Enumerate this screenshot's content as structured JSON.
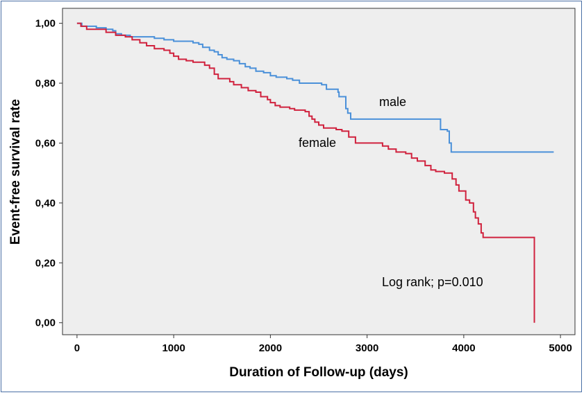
{
  "chart_data": {
    "type": "line",
    "subtype": "kaplan-meier-step",
    "xlabel": "Duration of Follow-up (days)",
    "ylabel": "Event-free survival rate",
    "xlim": [
      -150,
      5150
    ],
    "ylim": [
      -0.04,
      1.05
    ],
    "xticks": [
      0,
      1000,
      2000,
      3000,
      4000,
      5000
    ],
    "yticks": [
      0,
      0.2,
      0.4,
      0.6,
      0.8,
      1.0
    ],
    "ytick_labels": [
      "0,00",
      "0,20",
      "0,40",
      "0,60",
      "0,80",
      "1,00"
    ],
    "grid": false,
    "plot_background": "#eeeeee",
    "annotation": "Log rank; p=0.010",
    "series": [
      {
        "name": "male",
        "color": "#4a90d9",
        "points": [
          [
            0,
            1.0
          ],
          [
            50,
            0.99
          ],
          [
            100,
            0.99
          ],
          [
            200,
            0.985
          ],
          [
            300,
            0.98
          ],
          [
            370,
            0.975
          ],
          [
            400,
            0.965
          ],
          [
            460,
            0.96
          ],
          [
            550,
            0.955
          ],
          [
            700,
            0.955
          ],
          [
            800,
            0.95
          ],
          [
            900,
            0.945
          ],
          [
            1000,
            0.94
          ],
          [
            1100,
            0.94
          ],
          [
            1200,
            0.935
          ],
          [
            1260,
            0.93
          ],
          [
            1300,
            0.92
          ],
          [
            1370,
            0.91
          ],
          [
            1420,
            0.905
          ],
          [
            1460,
            0.895
          ],
          [
            1500,
            0.885
          ],
          [
            1550,
            0.88
          ],
          [
            1620,
            0.875
          ],
          [
            1680,
            0.865
          ],
          [
            1740,
            0.855
          ],
          [
            1790,
            0.85
          ],
          [
            1850,
            0.84
          ],
          [
            1930,
            0.835
          ],
          [
            2000,
            0.825
          ],
          [
            2060,
            0.82
          ],
          [
            2170,
            0.815
          ],
          [
            2230,
            0.81
          ],
          [
            2300,
            0.8
          ],
          [
            2530,
            0.795
          ],
          [
            2580,
            0.78
          ],
          [
            2700,
            0.77
          ],
          [
            2710,
            0.755
          ],
          [
            2750,
            0.755
          ],
          [
            2780,
            0.715
          ],
          [
            2800,
            0.7
          ],
          [
            2830,
            0.68
          ],
          [
            3000,
            0.68
          ],
          [
            3750,
            0.68
          ],
          [
            3760,
            0.645
          ],
          [
            3830,
            0.64
          ],
          [
            3850,
            0.6
          ],
          [
            3870,
            0.57
          ],
          [
            4000,
            0.57
          ],
          [
            4930,
            0.57
          ]
        ]
      },
      {
        "name": "female",
        "color": "#d0213d",
        "points": [
          [
            0,
            1.0
          ],
          [
            40,
            0.99
          ],
          [
            100,
            0.98
          ],
          [
            200,
            0.98
          ],
          [
            300,
            0.97
          ],
          [
            400,
            0.96
          ],
          [
            500,
            0.955
          ],
          [
            570,
            0.945
          ],
          [
            650,
            0.935
          ],
          [
            720,
            0.925
          ],
          [
            800,
            0.915
          ],
          [
            900,
            0.91
          ],
          [
            960,
            0.9
          ],
          [
            1000,
            0.89
          ],
          [
            1050,
            0.88
          ],
          [
            1130,
            0.875
          ],
          [
            1200,
            0.87
          ],
          [
            1320,
            0.86
          ],
          [
            1370,
            0.85
          ],
          [
            1420,
            0.83
          ],
          [
            1460,
            0.815
          ],
          [
            1580,
            0.805
          ],
          [
            1620,
            0.795
          ],
          [
            1700,
            0.785
          ],
          [
            1770,
            0.775
          ],
          [
            1850,
            0.77
          ],
          [
            1900,
            0.755
          ],
          [
            1970,
            0.745
          ],
          [
            2000,
            0.735
          ],
          [
            2050,
            0.725
          ],
          [
            2100,
            0.72
          ],
          [
            2200,
            0.715
          ],
          [
            2250,
            0.71
          ],
          [
            2360,
            0.705
          ],
          [
            2400,
            0.69
          ],
          [
            2430,
            0.68
          ],
          [
            2460,
            0.67
          ],
          [
            2500,
            0.66
          ],
          [
            2550,
            0.65
          ],
          [
            2680,
            0.645
          ],
          [
            2740,
            0.64
          ],
          [
            2810,
            0.62
          ],
          [
            2880,
            0.6
          ],
          [
            3050,
            0.6
          ],
          [
            3160,
            0.59
          ],
          [
            3220,
            0.58
          ],
          [
            3300,
            0.57
          ],
          [
            3400,
            0.565
          ],
          [
            3460,
            0.55
          ],
          [
            3520,
            0.54
          ],
          [
            3600,
            0.525
          ],
          [
            3660,
            0.51
          ],
          [
            3710,
            0.505
          ],
          [
            3800,
            0.5
          ],
          [
            3880,
            0.48
          ],
          [
            3920,
            0.46
          ],
          [
            3950,
            0.44
          ],
          [
            4000,
            0.44
          ],
          [
            4020,
            0.41
          ],
          [
            4060,
            0.4
          ],
          [
            4100,
            0.37
          ],
          [
            4120,
            0.35
          ],
          [
            4150,
            0.33
          ],
          [
            4180,
            0.3
          ],
          [
            4200,
            0.285
          ],
          [
            4730,
            0.285
          ],
          [
            4730,
            0.0
          ]
        ]
      }
    ]
  }
}
